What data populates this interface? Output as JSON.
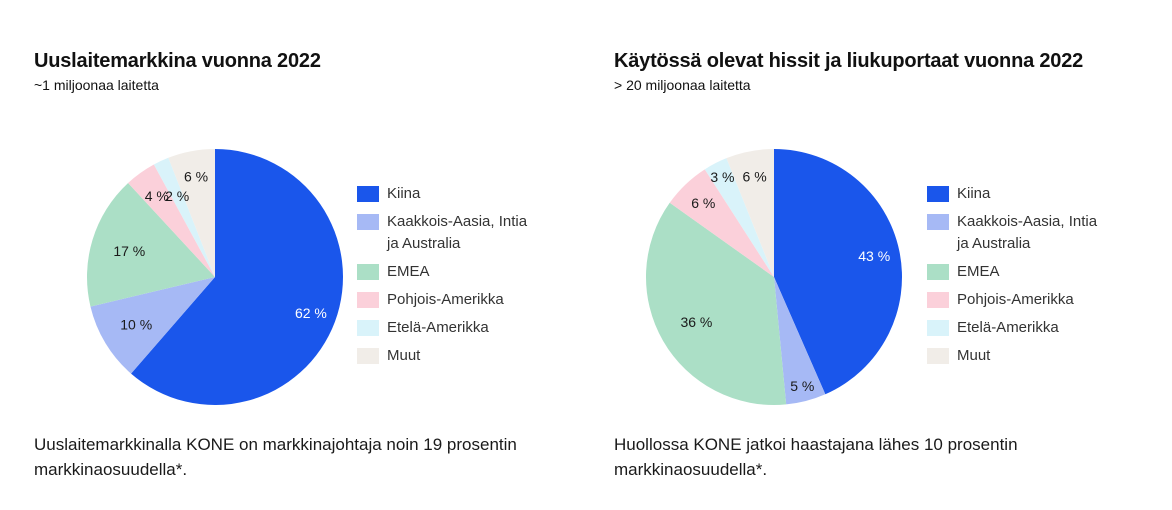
{
  "chart_data": [
    {
      "type": "pie",
      "title": "Uuslaitemarkkina vuonna 2022",
      "subtitle": "~1 miljoonaa laitetta",
      "categories": [
        "Kiina",
        "Kaakkois-Aasia, Intia ja Australia",
        "EMEA",
        "Pohjois-Amerikka",
        "Etelä-Amerikka",
        "Muut"
      ],
      "values": [
        62,
        10,
        17,
        4,
        2,
        6
      ],
      "value_labels": [
        "62 %",
        "10 %",
        "17 %",
        "4 %",
        "2 %",
        "6 %"
      ],
      "colors": [
        "#1a56eb",
        "#a6b9f5",
        "#abdfc6",
        "#fbd0da",
        "#d9f3fa",
        "#f1ede8"
      ],
      "legend_position": "right",
      "legend_lines": [
        [
          "Kiina"
        ],
        [
          "Kaakkois-Aasia, Intia",
          "ja Australia"
        ],
        [
          "EMEA"
        ],
        [
          "Pohjois-Amerikka"
        ],
        [
          "Etelä-Amerikka"
        ],
        [
          "Muut"
        ]
      ],
      "footnote": "Uuslaitemarkkinalla KONE on markkinajohtaja noin 19 prosentin markkinaosuudella*."
    },
    {
      "type": "pie",
      "title": "Käytössä olevat hissit ja liukuportaat vuonna 2022",
      "subtitle": "> 20 miljoonaa laitetta",
      "categories": [
        "Kiina",
        "Kaakkois-Aasia, Intia ja Australia",
        "EMEA",
        "Pohjois-Amerikka",
        "Etelä-Amerikka",
        "Muut"
      ],
      "values": [
        43,
        5,
        36,
        6,
        3,
        6
      ],
      "value_labels": [
        "43 %",
        "5 %",
        "36 %",
        "6 %",
        "3 %",
        "6 %"
      ],
      "colors": [
        "#1a56eb",
        "#a6b9f5",
        "#abdfc6",
        "#fbd0da",
        "#d9f3fa",
        "#f1ede8"
      ],
      "legend_position": "right",
      "legend_lines": [
        [
          "Kiina"
        ],
        [
          "Kaakkois-Aasia, Intia",
          "ja Australia"
        ],
        [
          "EMEA"
        ],
        [
          "Pohjois-Amerikka"
        ],
        [
          "Etelä-Amerikka"
        ],
        [
          "Muut"
        ]
      ],
      "footnote": "Huollossa KONE jatkoi haastajana lähes 10 prosentin markkinaosuudella*."
    }
  ]
}
